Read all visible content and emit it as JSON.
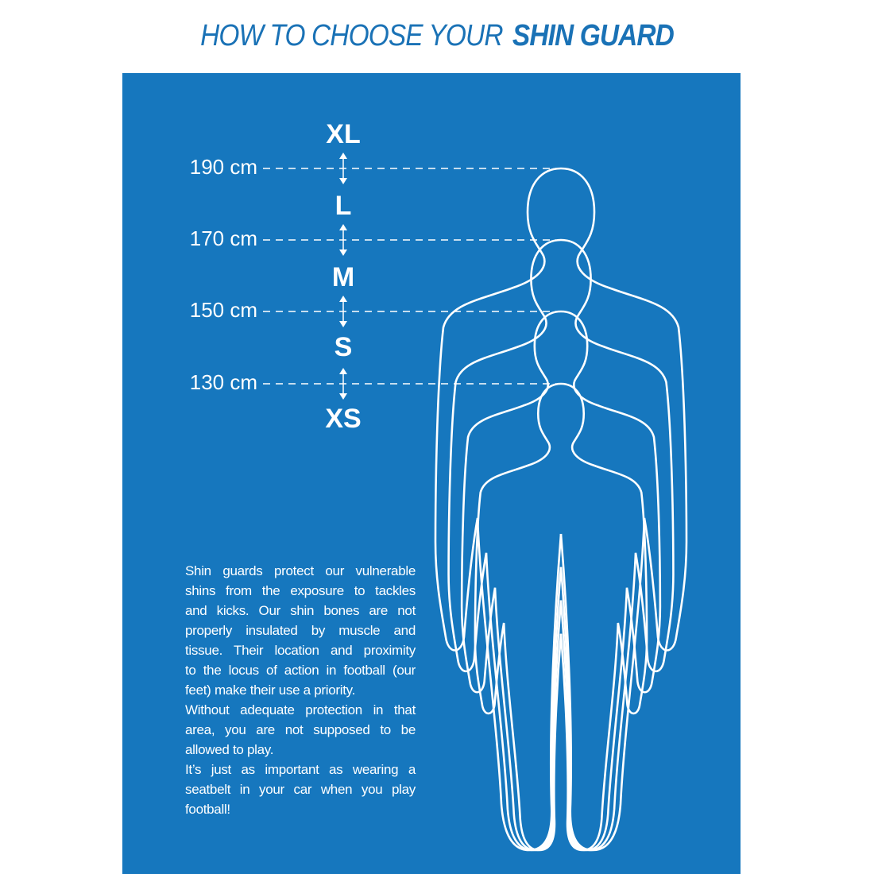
{
  "title": {
    "light": "HOW TO CHOOSE YOUR",
    "bold": "SHIN GUARD"
  },
  "colors": {
    "panel": "#1677be",
    "title": "#1a72b6",
    "lines": "#ffffff"
  },
  "heights": [
    "190 cm",
    "170 cm",
    "150 cm",
    "130 cm"
  ],
  "sizes": [
    "XL",
    "L",
    "M",
    "S",
    "XS"
  ],
  "description": [
    "Shin guards protect our vulnerable",
    "shins from the exposure to tackles",
    "and kicks. Our shin bones are not",
    "properly insulated by muscle and",
    "tissue. Their location and proximity",
    "to the locus of action in football (our",
    "feet) make their use a priority.",
    "Without adequate protection in that",
    "area, you are not supposed to be",
    "allowed to play.",
    "It’s just as important as wearing a",
    "seatbelt in your car when you play",
    "football!"
  ]
}
